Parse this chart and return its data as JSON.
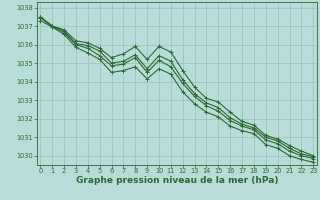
{
  "background_color": "#b8ddd8",
  "grid_color": "#9bbfba",
  "line_color": "#2d6a2d",
  "xlabel": "Graphe pression niveau de la mer (hPa)",
  "xlabel_fontsize": 6.5,
  "xticks": [
    0,
    1,
    2,
    3,
    4,
    5,
    6,
    7,
    8,
    9,
    10,
    11,
    12,
    13,
    14,
    15,
    16,
    17,
    18,
    19,
    20,
    21,
    22,
    23
  ],
  "ylim": [
    1029.5,
    1038.3
  ],
  "yticks": [
    1030,
    1031,
    1032,
    1033,
    1034,
    1035,
    1036,
    1037,
    1038
  ],
  "xlim": [
    -0.3,
    23.3
  ],
  "series": [
    [
      1037.5,
      1037.0,
      1036.8,
      1036.2,
      1036.1,
      1035.8,
      1035.3,
      1035.5,
      1035.9,
      1035.2,
      1035.9,
      1035.6,
      1034.6,
      1033.7,
      1033.1,
      1032.9,
      1032.35,
      1031.85,
      1031.65,
      1031.1,
      1030.9,
      1030.55,
      1030.25,
      1030.0
    ],
    [
      1037.5,
      1037.0,
      1036.75,
      1036.05,
      1035.95,
      1035.65,
      1035.0,
      1035.1,
      1035.45,
      1034.7,
      1035.4,
      1035.1,
      1034.1,
      1033.35,
      1032.85,
      1032.6,
      1032.05,
      1031.7,
      1031.5,
      1031.0,
      1030.8,
      1030.4,
      1030.1,
      1029.95
    ],
    [
      1037.45,
      1036.98,
      1036.65,
      1036.0,
      1035.8,
      1035.4,
      1034.85,
      1034.95,
      1035.3,
      1034.5,
      1035.15,
      1034.8,
      1033.9,
      1033.2,
      1032.7,
      1032.4,
      1031.9,
      1031.6,
      1031.4,
      1030.85,
      1030.65,
      1030.25,
      1030.0,
      1029.85
    ],
    [
      1037.3,
      1036.95,
      1036.55,
      1035.85,
      1035.55,
      1035.2,
      1034.5,
      1034.6,
      1034.8,
      1034.15,
      1034.7,
      1034.4,
      1033.45,
      1032.8,
      1032.35,
      1032.1,
      1031.6,
      1031.35,
      1031.2,
      1030.6,
      1030.4,
      1030.0,
      1029.8,
      1029.65
    ]
  ]
}
